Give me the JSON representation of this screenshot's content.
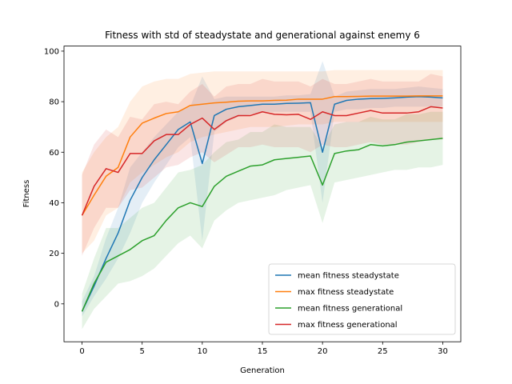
{
  "chart_data": {
    "type": "line",
    "title": "Fitness with std of steadystate and generational against enemy 6",
    "xlabel": "Generation",
    "ylabel": "Fitness",
    "xlim": [
      -1.5,
      31.5
    ],
    "ylim": [
      -15,
      102
    ],
    "xticks": [
      0,
      5,
      10,
      15,
      20,
      25,
      30
    ],
    "yticks": [
      0,
      20,
      40,
      60,
      80,
      100
    ],
    "legend_position": "lower-right",
    "x": [
      0,
      1,
      2,
      3,
      4,
      5,
      6,
      7,
      8,
      9,
      10,
      11,
      12,
      13,
      14,
      15,
      16,
      17,
      18,
      19,
      20,
      21,
      22,
      23,
      24,
      25,
      26,
      27,
      28,
      29,
      30
    ],
    "series": [
      {
        "name": "mean fitness steadystate",
        "color": "#1f77b4",
        "values": [
          -3,
          7,
          18,
          28,
          41,
          50,
          57,
          63,
          69,
          72,
          55.5,
          74.5,
          77,
          78,
          78.5,
          79,
          79,
          79.3,
          79.4,
          79.6,
          60,
          79,
          80.5,
          81,
          81.2,
          81.3,
          81.5,
          81.8,
          82,
          81.8,
          81.5
        ],
        "std_lower": [
          -5,
          3,
          10,
          18,
          28,
          40,
          48,
          55,
          62,
          66,
          25,
          68,
          72,
          74,
          75,
          76,
          76,
          76,
          76,
          76,
          40,
          76,
          77,
          77,
          77.5,
          77.5,
          78,
          78,
          78,
          78,
          78
        ],
        "std_upper": [
          1,
          11,
          26,
          38,
          54,
          60,
          66,
          71,
          76,
          78,
          90,
          81,
          82,
          82,
          82,
          82,
          82,
          82.5,
          82.5,
          83,
          96,
          82,
          84,
          84.5,
          85,
          85,
          85,
          85.5,
          86,
          85.5,
          85
        ]
      },
      {
        "name": "max fitness steadystate",
        "color": "#ff7f0e",
        "values": [
          35,
          43,
          50.5,
          54,
          66,
          71.5,
          73.5,
          75.3,
          76,
          78.5,
          79,
          79.5,
          79.8,
          80.2,
          80.3,
          80.3,
          80.5,
          80.6,
          81,
          81,
          81,
          82,
          82,
          82.1,
          82.2,
          82.2,
          82.2,
          82.2,
          82.3,
          82.3,
          82.3
        ],
        "std_lower": [
          20,
          25,
          35,
          38,
          48,
          52,
          55,
          58,
          60,
          64,
          66,
          67,
          68,
          69,
          70,
          70,
          70,
          70.5,
          71,
          71,
          71,
          72,
          72,
          72,
          72,
          72,
          72,
          72,
          72,
          72,
          72
        ],
        "std_upper": [
          52,
          60,
          66,
          70,
          80,
          86,
          88,
          89,
          89,
          91,
          91.5,
          92,
          92,
          92,
          92,
          92,
          92,
          92,
          92,
          92,
          92,
          92.5,
          92.5,
          92.5,
          92.5,
          92.5,
          92.5,
          92.5,
          92.5,
          92.5,
          92.5
        ]
      },
      {
        "name": "mean fitness generational",
        "color": "#2ca02c",
        "values": [
          -3,
          8,
          16.5,
          19,
          21.5,
          25,
          27,
          33,
          38,
          40,
          38.5,
          46.5,
          50.5,
          52.5,
          54.5,
          55,
          57,
          57.5,
          58,
          58.5,
          47,
          59.5,
          60.5,
          61,
          63,
          62.5,
          63,
          64,
          64.5,
          65,
          65.5
        ],
        "std_lower": [
          -10,
          -2,
          3,
          8,
          9,
          11,
          14,
          19,
          24,
          27,
          22,
          33,
          37,
          40,
          41,
          42,
          43,
          45,
          46,
          47,
          32,
          48,
          49,
          50,
          51,
          52,
          53,
          53,
          54,
          54,
          55
        ],
        "std_upper": [
          4,
          18,
          30,
          30,
          34,
          38,
          40,
          46,
          52,
          53,
          55,
          60,
          64,
          65,
          68,
          68,
          71,
          70,
          70,
          70,
          62,
          71,
          72,
          72,
          74,
          73,
          73,
          75,
          75,
          76,
          76
        ]
      },
      {
        "name": "max fitness generational",
        "color": "#d62728",
        "values": [
          35,
          46.5,
          53.5,
          52,
          59.5,
          59.5,
          64.5,
          67,
          67,
          71,
          73.5,
          69,
          72.5,
          74.5,
          74.5,
          76,
          75,
          74.8,
          75,
          73,
          76,
          74.5,
          74.5,
          75.5,
          76.5,
          75.5,
          75.5,
          75.5,
          76,
          78,
          77.5
        ],
        "std_lower": [
          19,
          30,
          38,
          38,
          45,
          46,
          50,
          54,
          55,
          58,
          60,
          56,
          59,
          62,
          62,
          63,
          62,
          62,
          62,
          60,
          63,
          62,
          62,
          63,
          64,
          63,
          63,
          63,
          64,
          65,
          65
        ],
        "std_upper": [
          51,
          63,
          69,
          66,
          74,
          73,
          79,
          80,
          79,
          84,
          87,
          82,
          86,
          87,
          87,
          89,
          88,
          88,
          88,
          86,
          89,
          87,
          87,
          88,
          89,
          88,
          88,
          88,
          88,
          91,
          90
        ]
      }
    ]
  }
}
